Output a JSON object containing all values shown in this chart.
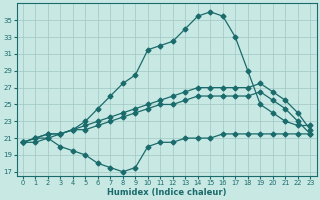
{
  "xlabel": "Humidex (Indice chaleur)",
  "bg_color": "#c8e8e4",
  "line_color": "#1a6b6b",
  "grid_color": "#a0c8c4",
  "xlim": [
    -0.5,
    23.5
  ],
  "ylim": [
    16.5,
    37.0
  ],
  "yticks": [
    17,
    19,
    21,
    23,
    25,
    27,
    29,
    31,
    33,
    35
  ],
  "xticks": [
    0,
    1,
    2,
    3,
    4,
    5,
    6,
    7,
    8,
    9,
    10,
    11,
    12,
    13,
    14,
    15,
    16,
    17,
    18,
    19,
    20,
    21,
    22,
    23
  ],
  "line1_x": [
    0,
    1,
    2,
    3,
    4,
    5,
    6,
    7,
    8,
    9,
    10,
    11,
    12,
    13,
    14,
    15,
    16,
    17,
    18,
    19,
    20,
    21,
    22,
    23
  ],
  "line1_y": [
    20.5,
    21.0,
    21.0,
    21.5,
    22.0,
    23.0,
    24.5,
    26.0,
    27.5,
    28.5,
    31.5,
    32.0,
    32.5,
    34.0,
    35.5,
    36.0,
    35.5,
    33.0,
    29.0,
    25.0,
    24.0,
    23.0,
    22.5,
    22.5
  ],
  "line2_x": [
    0,
    1,
    2,
    3,
    4,
    5,
    6,
    7,
    8,
    9,
    10,
    11,
    12,
    13,
    14,
    15,
    16,
    17,
    18,
    19,
    20,
    21,
    22,
    23
  ],
  "line2_y": [
    20.5,
    21.0,
    21.5,
    21.5,
    22.0,
    22.5,
    23.0,
    23.5,
    24.0,
    24.5,
    25.0,
    25.5,
    26.0,
    26.5,
    27.0,
    27.0,
    27.0,
    27.0,
    27.0,
    27.5,
    26.5,
    25.5,
    24.0,
    22.0
  ],
  "line3_x": [
    0,
    1,
    2,
    3,
    4,
    5,
    6,
    7,
    8,
    9,
    10,
    11,
    12,
    13,
    14,
    15,
    16,
    17,
    18,
    19,
    20,
    21,
    22,
    23
  ],
  "line3_y": [
    20.5,
    21.0,
    21.5,
    21.5,
    22.0,
    22.0,
    22.5,
    23.0,
    23.5,
    24.0,
    24.5,
    25.0,
    25.0,
    25.5,
    26.0,
    26.0,
    26.0,
    26.0,
    26.0,
    26.5,
    25.5,
    24.5,
    23.0,
    21.5
  ],
  "line4_x": [
    0,
    1,
    2,
    3,
    4,
    5,
    6,
    7,
    8,
    9,
    10,
    11,
    12,
    13,
    14,
    15,
    16,
    17,
    18,
    19,
    20,
    21,
    22,
    23
  ],
  "line4_y": [
    20.5,
    20.5,
    21.0,
    20.0,
    19.5,
    19.0,
    18.0,
    17.5,
    17.0,
    17.5,
    20.0,
    20.5,
    20.5,
    21.0,
    21.0,
    21.0,
    21.5,
    21.5,
    21.5,
    21.5,
    21.5,
    21.5,
    21.5,
    21.5
  ]
}
